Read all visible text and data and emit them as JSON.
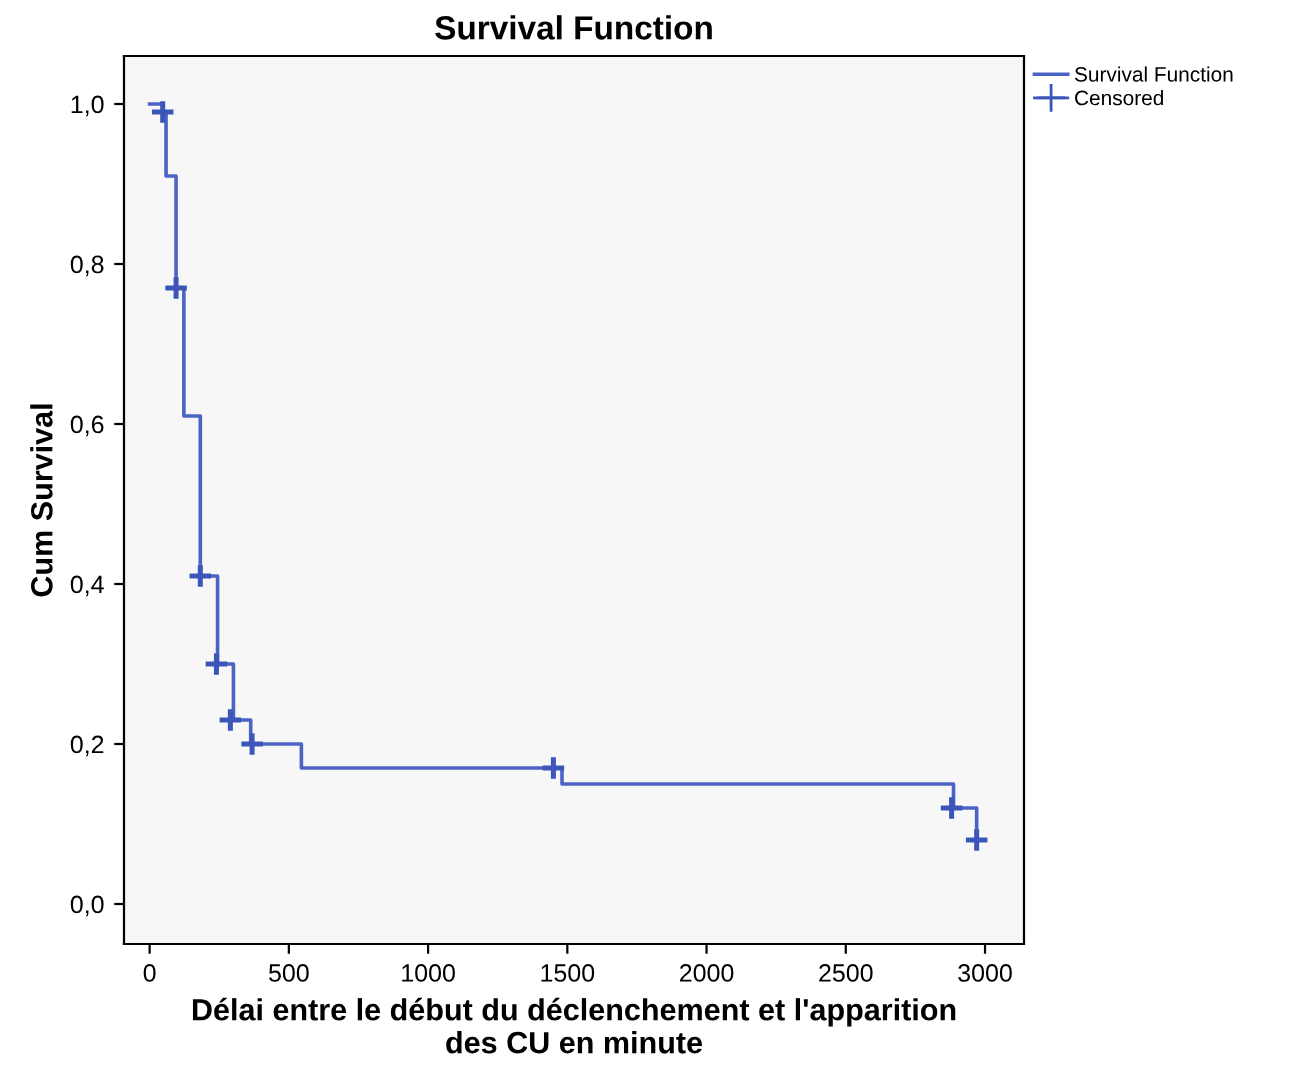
{
  "chart_data": {
    "type": "step",
    "title": "Survival Function",
    "xlabel": "Délai entre le début du déclenchement et l'apparition\ndes CU en minute",
    "ylabel": "Cum Survival",
    "series": [
      {
        "name": "Survival Function",
        "color": "#4a63c4",
        "x": [
          0,
          47,
          59,
          95,
          123,
          182,
          244,
          301,
          363,
          545,
          1481,
          2887,
          2970
        ],
        "values": [
          1.0,
          0.99,
          0.91,
          0.77,
          0.61,
          0.41,
          0.3,
          0.23,
          0.2,
          0.17,
          0.15,
          0.12,
          0.08
        ]
      },
      {
        "name": "Censored",
        "type": "scatter",
        "color": "#3b55b8",
        "marker": "cross",
        "x": [
          47,
          95,
          182,
          240,
          290,
          368,
          1450,
          2880,
          2970
        ],
        "values": [
          0.99,
          0.77,
          0.41,
          0.3,
          0.23,
          0.2,
          0.17,
          0.12,
          0.08
        ]
      }
    ],
    "xlim": [
      -92,
      3140
    ],
    "ylim": [
      -0.05,
      1.06
    ],
    "xticks": [
      0,
      500,
      1000,
      1500,
      2000,
      2500,
      3000
    ],
    "yticks": [
      {
        "value": 0,
        "label": "0,0"
      },
      {
        "value": 0.2,
        "label": "0,2"
      },
      {
        "value": 0.4,
        "label": "0,4"
      },
      {
        "value": 0.6,
        "label": "0,6"
      },
      {
        "value": 0.8,
        "label": "0,8"
      },
      {
        "value": 1.0,
        "label": "1,0"
      }
    ],
    "grid": false,
    "legend": "top right"
  }
}
